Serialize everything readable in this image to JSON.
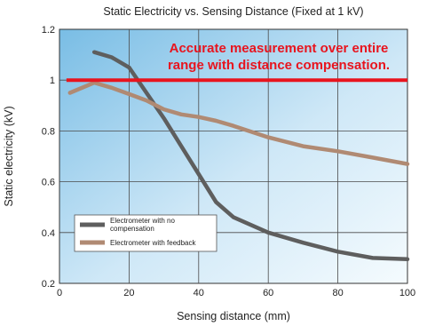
{
  "chart_data": {
    "type": "line",
    "title": "Static Electricity vs. Sensing Distance (Fixed at 1 kV)",
    "xlabel": "Sensing distance (mm)",
    "ylabel": "Static electricity (kV)",
    "xlim": [
      0,
      100
    ],
    "ylim": [
      0.2,
      1.2
    ],
    "xticks": [
      "0",
      "20",
      "40",
      "60",
      "80",
      "100"
    ],
    "yticks": [
      "0.2",
      "0.4",
      "0.6",
      "0.8",
      "1",
      "1.2"
    ],
    "grid": true,
    "legend_position": "bottom-left",
    "annotation": {
      "line1": "Accurate measurement over entire",
      "line2": "range with distance compensation.",
      "color": "#e8141e"
    },
    "reference_line": {
      "y": 1.0,
      "x": [
        2,
        100
      ],
      "color": "#e8141e"
    },
    "series": [
      {
        "name": "Electrometer with no compensation",
        "color": "#5e5e5e",
        "x": [
          10,
          15,
          20,
          25,
          30,
          35,
          40,
          45,
          50,
          60,
          70,
          80,
          90,
          100
        ],
        "y": [
          1.11,
          1.09,
          1.05,
          0.95,
          0.85,
          0.74,
          0.63,
          0.52,
          0.46,
          0.4,
          0.36,
          0.325,
          0.3,
          0.295
        ]
      },
      {
        "name": "Electrometer with feedback",
        "color": "#b08a73",
        "x": [
          3,
          10,
          15,
          20,
          25,
          30,
          35,
          40,
          45,
          50,
          60,
          70,
          80,
          90,
          100
        ],
        "y": [
          0.95,
          0.99,
          0.97,
          0.945,
          0.92,
          0.885,
          0.865,
          0.855,
          0.84,
          0.82,
          0.775,
          0.74,
          0.72,
          0.695,
          0.67
        ]
      }
    ]
  }
}
